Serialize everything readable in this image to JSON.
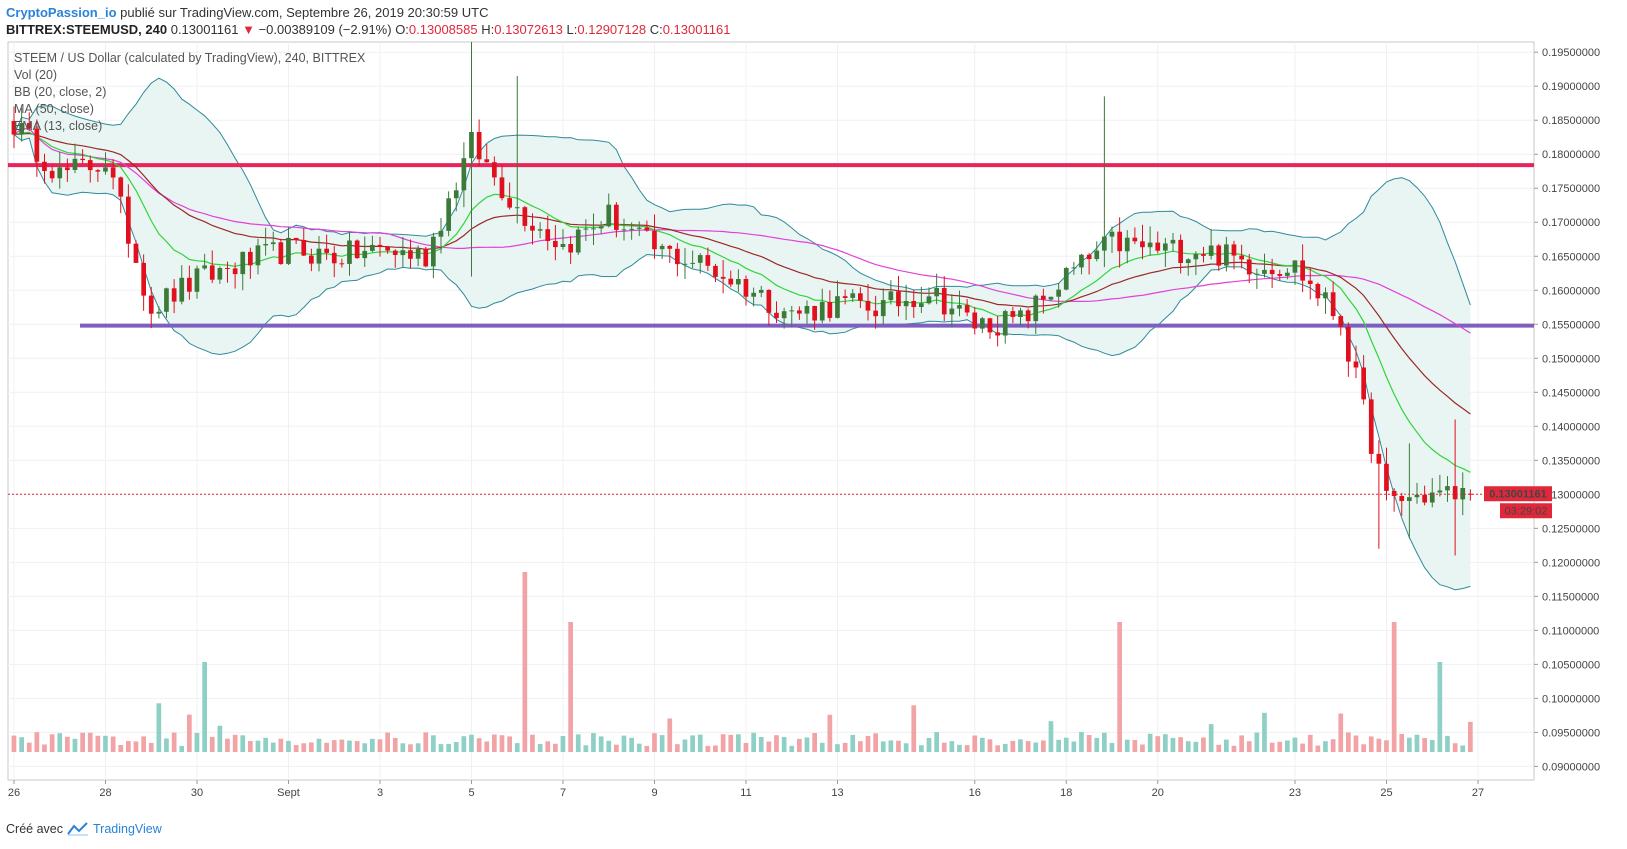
{
  "header": {
    "author": "CryptoPassion_io",
    "published_text": "publié sur TradingView.com, Septembre 26, 2019 20:30:59 UTC",
    "symbol": "BITTREX:STEEMUSD, 240",
    "last_price": "0.13001161",
    "change_arrow": "▼",
    "change": "−0.00389109 (−2.91%)",
    "open_label": "O:",
    "open": "0.13008585",
    "high_label": "H:",
    "high": "0.13072613",
    "low_label": "L:",
    "low": "0.12907128",
    "close_label": "C:",
    "close": "0.13001161"
  },
  "legend": {
    "title": "STEEM / US Dollar (calculated by TradingView), 240, BITTREX",
    "vol": "Vol (20)",
    "bb": "BB (20, close, 2)",
    "ma": "MA (50, close)",
    "ema": "EMA (13, close)"
  },
  "price_axis": {
    "ticks": [
      "0.19500000",
      "0.19000000",
      "0.18500000",
      "0.18000000",
      "0.17500000",
      "0.17000000",
      "0.16500000",
      "0.16000000",
      "0.15500000",
      "0.15000000",
      "0.14500000",
      "0.14000000",
      "0.13500000",
      "0.13000000",
      "0.12500000",
      "0.12000000",
      "0.11500000",
      "0.11000000",
      "0.10500000",
      "0.10000000",
      "0.09500000",
      "0.09000000"
    ],
    "current_price_label": "0.13001161",
    "countdown_label": "03:29:02"
  },
  "time_axis": {
    "labels": [
      "26",
      "28",
      "30",
      "Sept",
      "3",
      "5",
      "7",
      "9",
      "11",
      "13",
      "16",
      "18",
      "20",
      "23",
      "25",
      "27"
    ]
  },
  "footer": {
    "created_with": "Créé avec",
    "brand": "TradingView"
  },
  "colors": {
    "up": "#3c7a3a",
    "down": "#e0101f",
    "vol_up": "#8fd0c6",
    "vol_down": "#f2a3a5",
    "resistance_line": "#e9245b",
    "support_line": "#7d5fc0",
    "bb_band": "#2f8a9a",
    "bb_fill": "#e8f5f3",
    "ema": "#32d43a",
    "ma": "#e440d8",
    "slow_ma": "#9c2828",
    "price_line": "#e0283a"
  },
  "chart_data": {
    "type": "candlestick",
    "title": "STEEM / US Dollar (calculated by TradingView), 240, BITTREX",
    "ylim": [
      0.088,
      0.1965
    ],
    "x_range": [
      "Aug 26 2019",
      "Sep 27 2019"
    ],
    "horizontal_lines": [
      {
        "name": "resistance",
        "value": 0.1784
      },
      {
        "name": "support",
        "value": 0.1548
      }
    ],
    "current_price": 0.13001161,
    "segments": [
      {
        "date": "Aug 26",
        "price": 0.1845
      },
      {
        "date": "Aug 27",
        "price": 0.177
      },
      {
        "date": "Aug 28",
        "price": 0.179
      },
      {
        "date": "Aug 29",
        "price": 0.1575
      },
      {
        "date": "Aug 30",
        "price": 0.1615
      },
      {
        "date": "Aug 31",
        "price": 0.164
      },
      {
        "date": "Sep 01",
        "price": 0.166
      },
      {
        "date": "Sep 02",
        "price": 0.165
      },
      {
        "date": "Sep 03",
        "price": 0.166
      },
      {
        "date": "Sep 04",
        "price": 0.165
      },
      {
        "date": "Sep 05",
        "price": 0.1815
      },
      {
        "date": "Sep 06",
        "price": 0.172
      },
      {
        "date": "Sep 07",
        "price": 0.1665
      },
      {
        "date": "Sep 08",
        "price": 0.171
      },
      {
        "date": "Sep 09",
        "price": 0.166
      },
      {
        "date": "Sep 10",
        "price": 0.164
      },
      {
        "date": "Sep 11",
        "price": 0.1605
      },
      {
        "date": "Sep 12",
        "price": 0.1565
      },
      {
        "date": "Sep 13",
        "price": 0.158
      },
      {
        "date": "Sep 14",
        "price": 0.1575
      },
      {
        "date": "Sep 15",
        "price": 0.16
      },
      {
        "date": "Sep 16",
        "price": 0.155
      },
      {
        "date": "Sep 17",
        "price": 0.1555
      },
      {
        "date": "Sep 18",
        "price": 0.162
      },
      {
        "date": "Sep 19",
        "price": 0.167
      },
      {
        "date": "Sep 20",
        "price": 0.166
      },
      {
        "date": "Sep 21",
        "price": 0.166
      },
      {
        "date": "Sep 22",
        "price": 0.164
      },
      {
        "date": "Sep 23",
        "price": 0.1635
      },
      {
        "date": "Sep 24",
        "price": 0.1555
      },
      {
        "date": "Sep 25",
        "price": 0.129
      },
      {
        "date": "Sep 26",
        "price": 0.13
      }
    ],
    "volume_spikes": [
      {
        "date": "Aug 30",
        "level": "medium"
      },
      {
        "date": "Sep 05",
        "level": "highest"
      },
      {
        "date": "Sep 06",
        "level": "high"
      },
      {
        "date": "Sep 18",
        "level": "high"
      },
      {
        "date": "Sep 24",
        "level": "high"
      },
      {
        "date": "Sep 25",
        "level": "medium"
      }
    ]
  }
}
